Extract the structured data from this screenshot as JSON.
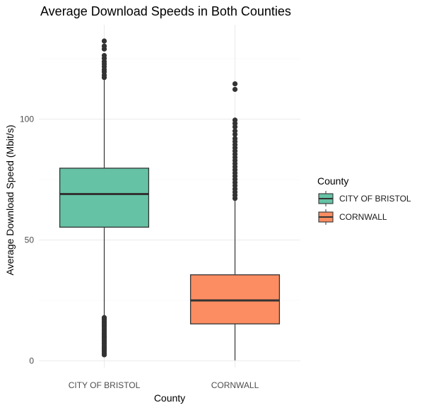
{
  "chart_data": {
    "type": "box",
    "title": "Average Download Speeds in Both Counties",
    "xlabel": "County",
    "ylabel": "Average Download Speed (Mbit/s)",
    "categories": [
      "CITY OF BRISTOL",
      "CORNWALL"
    ],
    "ylim": [
      -3,
      138
    ],
    "yticks": [
      0,
      50,
      100
    ],
    "grid": true,
    "legend": {
      "title": "County",
      "position": "right",
      "entries": [
        "CITY OF BRISTOL",
        "CORNWALL"
      ]
    },
    "colors": [
      "#66c2a5",
      "#fc8d62"
    ],
    "series": [
      {
        "name": "CITY OF BRISTOL",
        "whisker_low": 18.3,
        "q1": 55.3,
        "median": 69.0,
        "q3": 79.7,
        "whisker_high": 116.5,
        "outliers": [
          2.5,
          3.2,
          4.0,
          4.8,
          5.5,
          6.3,
          7.1,
          7.9,
          8.6,
          9.4,
          10.2,
          11.0,
          11.7,
          12.5,
          13.3,
          14.1,
          14.8,
          15.6,
          16.4,
          17.2,
          17.9,
          117.2,
          118.2,
          119.5,
          120.5,
          121.7,
          122.8,
          123.8,
          125.1,
          126.3,
          129.0,
          130.2,
          132.3
        ]
      },
      {
        "name": "CORNWALL",
        "whisker_low": 0.2,
        "q1": 15.3,
        "median": 25.0,
        "q3": 35.6,
        "whisker_high": 66.6,
        "outliers": [
          67.2,
          68.5,
          69.8,
          71.1,
          72.5,
          73.8,
          75.1,
          76.4,
          77.7,
          79.0,
          80.3,
          81.6,
          82.9,
          84.2,
          85.5,
          86.8,
          88.1,
          89.4,
          90.7,
          92.0,
          93.7,
          95.1,
          96.8,
          98.2,
          99.6,
          112.3,
          114.6
        ]
      }
    ]
  }
}
